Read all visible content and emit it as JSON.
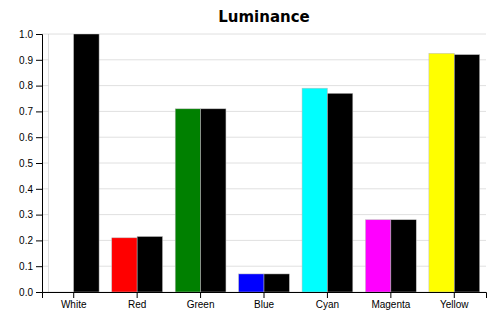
{
  "chart_data": {
    "type": "bar",
    "title": "Luminance",
    "categories": [
      "White",
      "Red",
      "Green",
      "Blue",
      "Cyan",
      "Magenta",
      "Yellow"
    ],
    "series": [
      {
        "colors": [
          "#ffffff",
          "#ff0000",
          "#008000",
          "#0000ff",
          "#00ffff",
          "#ff00ff",
          "#ffff00"
        ],
        "values": [
          1.0,
          0.21,
          0.71,
          0.07,
          0.79,
          0.28,
          0.925
        ]
      },
      {
        "color": "#000000",
        "values": [
          1.0,
          0.215,
          0.71,
          0.07,
          0.77,
          0.28,
          0.92
        ]
      }
    ],
    "ylim": [
      0.0,
      1.0
    ],
    "yticks": [
      {
        "value": 0.0,
        "label": "0.0"
      },
      0.1,
      0.2,
      0.3,
      0.4,
      0.5,
      0.6,
      0.7,
      0.8,
      0.9,
      {
        "value": 1.0,
        "label": "1.0"
      }
    ],
    "grid": true
  }
}
